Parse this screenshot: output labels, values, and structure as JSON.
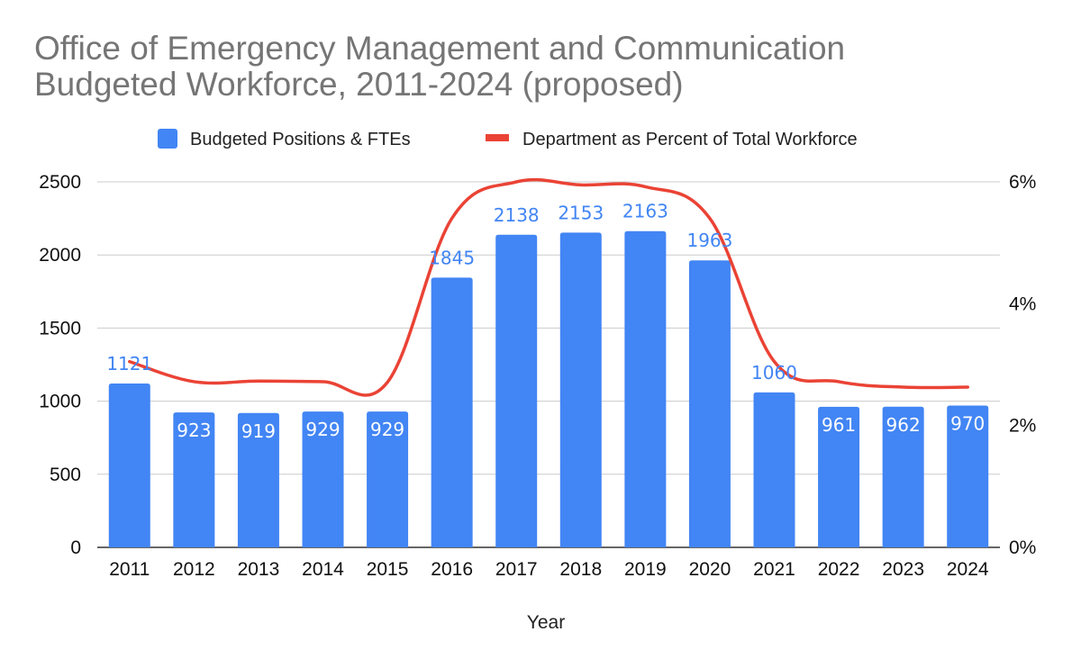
{
  "chart_data": {
    "type": "bar",
    "title_line1": "Office of Emergency Management and Communication",
    "title_line2": "Budgeted Workforce, 2011-2024 (proposed)",
    "xlabel": "Year",
    "categories": [
      "2011",
      "2012",
      "2013",
      "2014",
      "2015",
      "2016",
      "2017",
      "2018",
      "2019",
      "2020",
      "2021",
      "2022",
      "2023",
      "2024"
    ],
    "series": [
      {
        "name": "Budgeted Positions & FTEs",
        "type": "bar",
        "axis": "left",
        "color": "#4285F4",
        "values": [
          1121,
          923,
          919,
          929,
          929,
          1845,
          2138,
          2153,
          2163,
          1963,
          1060,
          961,
          962,
          970
        ],
        "labels": [
          "1121",
          "923",
          "919",
          "929",
          "929",
          "1845",
          "2138",
          "2153",
          "2163",
          "1963",
          "1060",
          "961",
          "962",
          "970"
        ]
      },
      {
        "name": "Department as Percent of Total Workforce",
        "type": "line",
        "axis": "right",
        "color": "#EA4335",
        "values": [
          3.05,
          2.72,
          2.73,
          2.72,
          2.71,
          5.4,
          6.0,
          5.95,
          5.92,
          5.4,
          3.05,
          2.72,
          2.63,
          2.63
        ]
      }
    ],
    "y_left": {
      "min": 0,
      "max": 2500,
      "ticks": [
        0,
        500,
        1000,
        1500,
        2000,
        2500
      ],
      "tick_labels": [
        "0",
        "500",
        "1000",
        "1500",
        "2000",
        "2500"
      ]
    },
    "y_right": {
      "min": 0,
      "max": 6,
      "ticks": [
        0,
        2,
        4,
        6
      ],
      "tick_labels": [
        "0%",
        "2%",
        "4%",
        "6%"
      ]
    },
    "grid": true,
    "legend_position": "top-center",
    "label_colors": {
      "inside": "#ffffff",
      "outside": "#4285F4"
    }
  }
}
